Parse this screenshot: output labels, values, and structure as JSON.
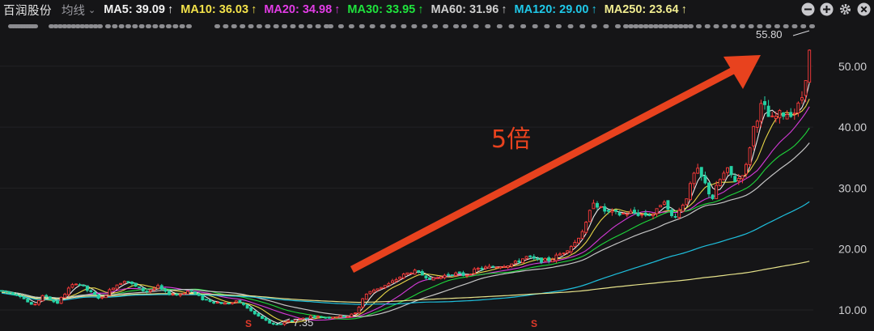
{
  "header": {
    "stock_name": "百润股份",
    "mode_label": "均线",
    "caret": "⌄",
    "ma_items": [
      {
        "label": "MA5: 39.09",
        "arrow": "↑",
        "color": "#f2f2f2"
      },
      {
        "label": "MA10: 36.03",
        "arrow": "↑",
        "color": "#f3e24a"
      },
      {
        "label": "MA20: 34.98",
        "arrow": "↑",
        "color": "#e23ce6"
      },
      {
        "label": "MA30: 33.95",
        "arrow": "↑",
        "color": "#1fe33d"
      },
      {
        "label": "MA60: 31.96",
        "arrow": "↑",
        "color": "#cfcfcf"
      },
      {
        "label": "MA120: 29.00",
        "arrow": "↑",
        "color": "#1fc8e8"
      },
      {
        "label": "MA250: 23.64",
        "arrow": "↑",
        "color": "#f0ec90"
      }
    ],
    "tools": [
      {
        "name": "zoom-out-icon",
        "glyph": "−"
      },
      {
        "name": "zoom-in-icon",
        "glyph": "+"
      },
      {
        "name": "gear-icon",
        "glyph": "⚙"
      },
      {
        "name": "close-icon",
        "glyph": "×"
      }
    ]
  },
  "chart_data": {
    "type": "candlestick",
    "y_axis_labels": [
      "50.00",
      "40.00",
      "30.00",
      "20.00",
      "10.00"
    ],
    "y_axis_values": [
      50,
      40,
      30,
      20,
      10
    ],
    "ylim": [
      8.5,
      57.5
    ],
    "max_label": "55.80",
    "min_label": "7.35",
    "annotation_text": "5倍",
    "signal_marks": [
      "S",
      "S"
    ],
    "ma_series": [
      {
        "name": "MA5",
        "color": "#f2f2f2"
      },
      {
        "name": "MA10",
        "color": "#f3e24a"
      },
      {
        "name": "MA20",
        "color": "#e23ce6"
      },
      {
        "name": "MA30",
        "color": "#1fe33d"
      },
      {
        "name": "MA60",
        "color": "#cfcfcf"
      },
      {
        "name": "MA120",
        "color": "#1fc8e8"
      },
      {
        "name": "MA250",
        "color": "#f0ec90"
      }
    ],
    "candle_up_color": "#ff3b3b",
    "candle_down_color": "#25d1a4",
    "close_path": [
      [
        0,
        13.2
      ],
      [
        25,
        12.4
      ],
      [
        40,
        10.6
      ],
      [
        55,
        12.5
      ],
      [
        70,
        11.0
      ],
      [
        85,
        13.5
      ],
      [
        95,
        14.6
      ],
      [
        110,
        13.0
      ],
      [
        125,
        11.8
      ],
      [
        140,
        13.8
      ],
      [
        155,
        15.0
      ],
      [
        165,
        14.0
      ],
      [
        180,
        13.0
      ],
      [
        195,
        13.8
      ],
      [
        205,
        12.8
      ],
      [
        220,
        12.5
      ],
      [
        235,
        13.2
      ],
      [
        250,
        11.8
      ],
      [
        265,
        11.3
      ],
      [
        280,
        11.0
      ],
      [
        295,
        11.4
      ],
      [
        305,
        10.4
      ],
      [
        315,
        9.3
      ],
      [
        330,
        8.1
      ],
      [
        340,
        7.4
      ],
      [
        355,
        8.2
      ],
      [
        370,
        8.5
      ],
      [
        385,
        9.0
      ],
      [
        400,
        8.8
      ],
      [
        415,
        8.9
      ],
      [
        430,
        9.0
      ],
      [
        440,
        9.5
      ],
      [
        450,
        12.4
      ],
      [
        465,
        13.5
      ],
      [
        480,
        14.2
      ],
      [
        495,
        15.5
      ],
      [
        510,
        16.4
      ],
      [
        525,
        15.6
      ],
      [
        535,
        15.0
      ],
      [
        548,
        15.6
      ],
      [
        560,
        16.0
      ],
      [
        575,
        15.7
      ],
      [
        590,
        16.7
      ],
      [
        605,
        17.0
      ],
      [
        620,
        17.3
      ],
      [
        635,
        17.6
      ],
      [
        650,
        18.7
      ],
      [
        665,
        18.1
      ],
      [
        680,
        18.2
      ],
      [
        695,
        19.4
      ],
      [
        710,
        21.0
      ],
      [
        725,
        24.2
      ],
      [
        733,
        28.0
      ],
      [
        742,
        26.6
      ],
      [
        752,
        26.0
      ],
      [
        765,
        25.7
      ],
      [
        780,
        26.0
      ],
      [
        795,
        25.6
      ],
      [
        810,
        25.8
      ],
      [
        820,
        28.5
      ],
      [
        828,
        25.2
      ],
      [
        838,
        26.0
      ],
      [
        850,
        29.0
      ],
      [
        860,
        33.2
      ],
      [
        870,
        31.0
      ],
      [
        880,
        28.2
      ],
      [
        888,
        31.0
      ],
      [
        898,
        33.0
      ],
      [
        910,
        31.0
      ],
      [
        922,
        33.5
      ],
      [
        930,
        39.5
      ],
      [
        942,
        44.0
      ],
      [
        952,
        41.0
      ],
      [
        962,
        42.0
      ],
      [
        972,
        42.3
      ],
      [
        982,
        42.5
      ],
      [
        990,
        44.2
      ],
      [
        997,
        49.5
      ],
      [
        1003,
        54.5
      ]
    ]
  }
}
